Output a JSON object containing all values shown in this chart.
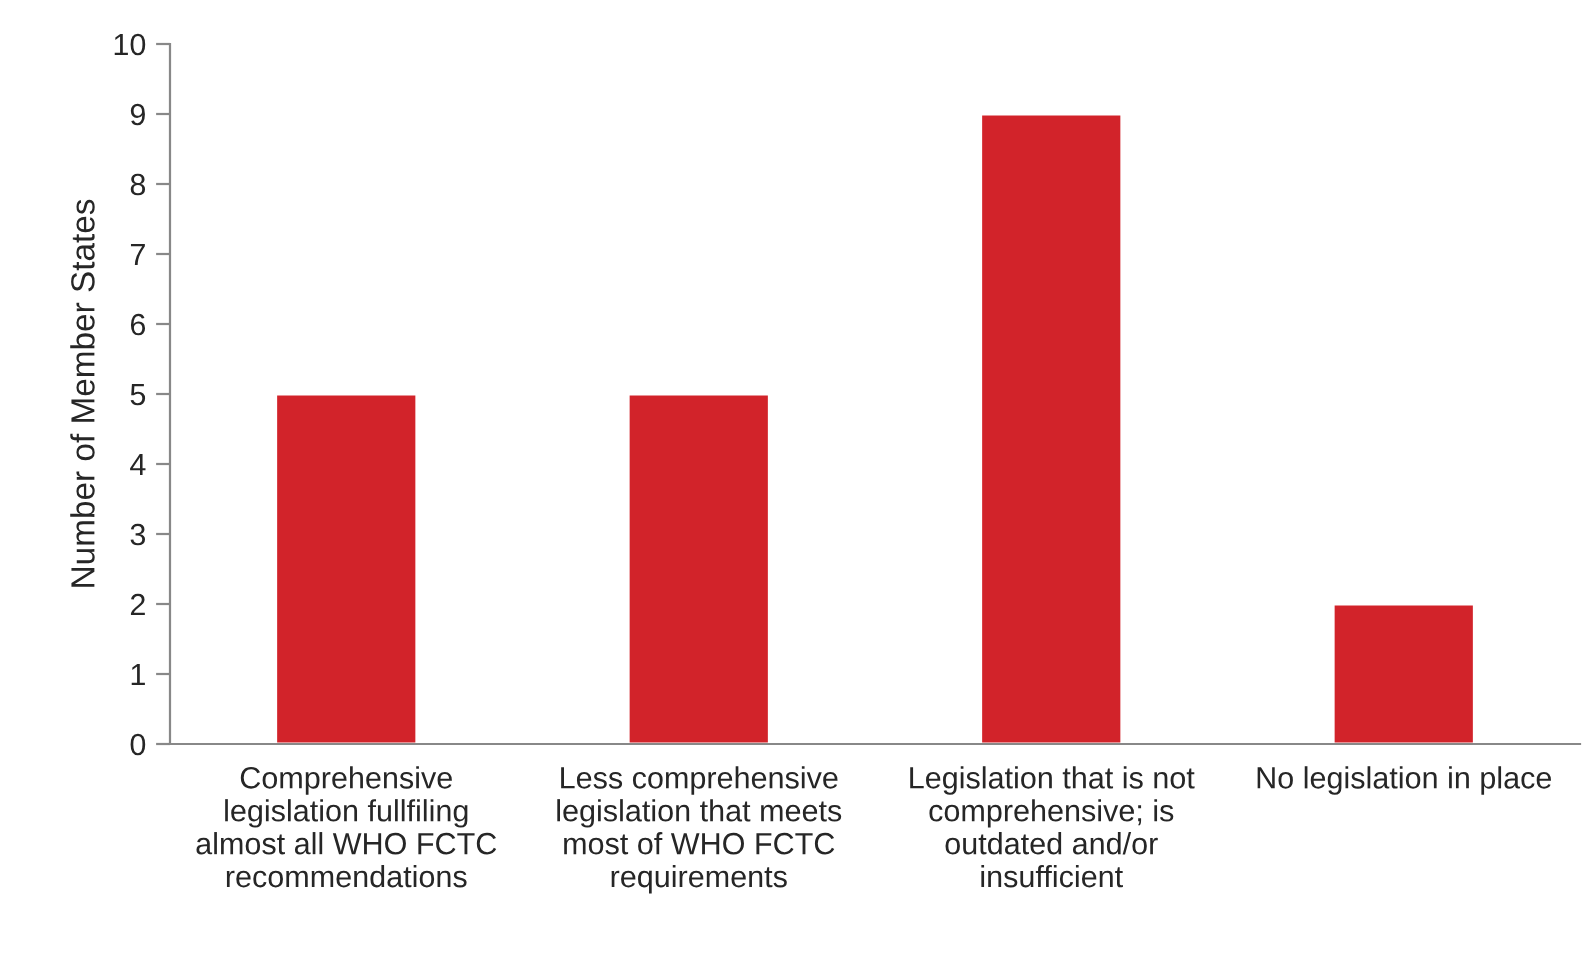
{
  "chart_data": {
    "type": "bar",
    "ylabel": "Number of Member States",
    "categories": [
      "Comprehensive\nlegislation fullfiling\nalmost all WHO FCTC\nrecommendations",
      "Less comprehensive\nlegislation that meets\nmost of WHO FCTC\nrequirements",
      "Legislation that is not\ncomprehensive; is\noutdated and/or\ninsufficient",
      "No legislation in place"
    ],
    "values": [
      5,
      5,
      9,
      2
    ],
    "color": "#d2232a",
    "ylim": [
      0,
      10
    ],
    "yticks": [
      0,
      1,
      2,
      3,
      4,
      5,
      6,
      7,
      8,
      9,
      10
    ],
    "grid": false
  }
}
